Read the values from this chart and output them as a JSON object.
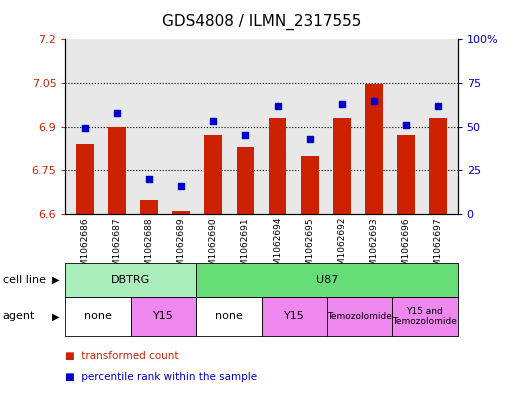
{
  "title": "GDS4808 / ILMN_2317555",
  "samples": [
    "GSM1062686",
    "GSM1062687",
    "GSM1062688",
    "GSM1062689",
    "GSM1062690",
    "GSM1062691",
    "GSM1062694",
    "GSM1062695",
    "GSM1062692",
    "GSM1062693",
    "GSM1062696",
    "GSM1062697"
  ],
  "transformed_count": [
    6.84,
    6.9,
    6.65,
    6.61,
    6.87,
    6.83,
    6.93,
    6.8,
    6.93,
    7.045,
    6.87,
    6.93
  ],
  "percentile_rank": [
    49,
    58,
    20,
    16,
    53,
    45,
    62,
    43,
    63,
    65,
    51,
    62
  ],
  "ylim_left": [
    6.6,
    7.2
  ],
  "ylim_right": [
    0,
    100
  ],
  "yticks_left": [
    6.6,
    6.75,
    6.9,
    7.05,
    7.2
  ],
  "yticks_right": [
    0,
    25,
    50,
    75,
    100
  ],
  "ytick_labels_left": [
    "6.6",
    "6.75",
    "6.9",
    "7.05",
    "7.2"
  ],
  "ytick_labels_right": [
    "0",
    "25",
    "50",
    "75",
    "100%"
  ],
  "bar_color": "#cc2200",
  "dot_color": "#0000cc",
  "plot_bg_color": "#e8e8e8",
  "cell_line_groups": [
    {
      "name": "DBTRG",
      "start": 0,
      "end": 4,
      "color": "#aaeebb"
    },
    {
      "name": "U87",
      "start": 4,
      "end": 12,
      "color": "#66dd77"
    }
  ],
  "agent_groups": [
    {
      "name": "none",
      "start": 0,
      "end": 2,
      "color": "#ffffff"
    },
    {
      "name": "Y15",
      "start": 2,
      "end": 4,
      "color": "#ee88ee"
    },
    {
      "name": "none",
      "start": 4,
      "end": 6,
      "color": "#ffffff"
    },
    {
      "name": "Y15",
      "start": 6,
      "end": 8,
      "color": "#ee88ee"
    },
    {
      "name": "Temozolomide",
      "start": 8,
      "end": 10,
      "color": "#ee88ee"
    },
    {
      "name": "Y15 and\nTemozolomide",
      "start": 10,
      "end": 12,
      "color": "#ee88ee"
    }
  ],
  "dotted_lines": [
    6.75,
    6.9,
    7.05
  ],
  "title_fontsize": 11,
  "tick_fontsize": 8,
  "bar_width": 0.55,
  "left_color": "#cc2200",
  "right_color": "#0000cc"
}
